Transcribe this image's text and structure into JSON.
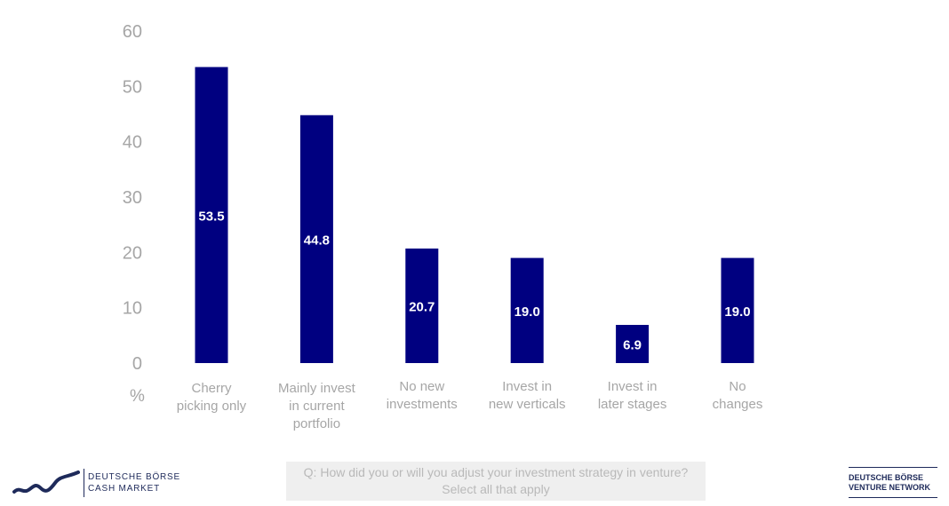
{
  "chart_data": {
    "type": "bar",
    "categories": [
      [
        "Cherry",
        "picking only"
      ],
      [
        "Mainly invest",
        "in current",
        "portfolio"
      ],
      [
        "No new",
        "investments"
      ],
      [
        "Invest in",
        "new verticals"
      ],
      [
        "Invest in",
        "later stages"
      ],
      [
        "No",
        "changes"
      ]
    ],
    "values": [
      53.5,
      44.8,
      20.7,
      19.0,
      6.9,
      19.0
    ],
    "data_labels": [
      "53.5",
      "44.8",
      "20.7",
      "19.0",
      "6.9",
      "19.0"
    ],
    "title": "",
    "xlabel": "",
    "ylabel": "%",
    "ylim": [
      0,
      60
    ],
    "yticks": [
      0,
      10,
      20,
      30,
      40,
      50,
      60
    ],
    "grid": false,
    "legend": "none",
    "bar_color": "#000080",
    "label_color": "#ffffff",
    "axis_text_color": "#a6a6a6"
  },
  "footer": {
    "question_line1": "Q: How did you or will you adjust your investment strategy in venture?",
    "question_line2": "Select all that apply"
  },
  "logos": {
    "left_line1": "DEUTSCHE BÖRSE",
    "left_line2": "CASH MARKET",
    "left_icon": "wave-line-icon",
    "right_line1": "DEUTSCHE BÖRSE",
    "right_line2": "VENTURE NETWORK"
  }
}
